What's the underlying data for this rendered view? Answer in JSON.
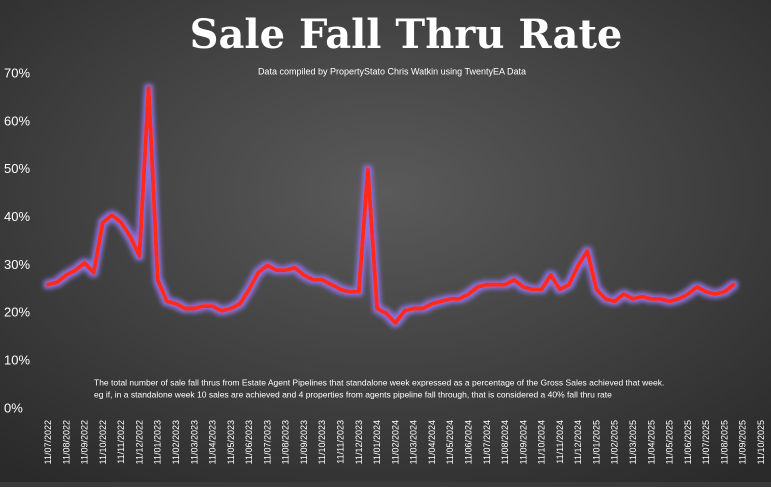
{
  "chart_data": {
    "type": "line",
    "title": "Sale Fall Thru Rate",
    "subtitle": "Data compiled by PropertyStato Chris Watkin using TwentyEA Data",
    "notes": [
      "The total number of sale fall thrus from Estate Agent Pipelines that standalone week expressed as a percentage of the Gross Sales achieved that week.",
      "eg if, in a standalone week 10 sales are achieved and 4 properties from agents pipeline fall through, that is considered a 40%  fall thru rate"
    ],
    "categories": [
      "11/07/2022",
      null,
      "11/08/2022",
      null,
      "11/09/2022",
      null,
      "11/10/2022",
      null,
      "11/11/2022",
      null,
      "11/12/2022",
      null,
      "11/01/2023",
      null,
      "11/02/2023",
      null,
      "11/03/2023",
      null,
      "11/04/2023",
      null,
      "11/05/2023",
      null,
      "11/06/2023",
      null,
      "11/07/2023",
      null,
      "11/08/2023",
      null,
      "11/09/2023",
      null,
      "11/10/2023",
      null,
      "11/11/2023",
      null,
      "11/12/2023",
      null,
      "11/01/2024",
      null,
      "11/02/2024",
      null,
      "11/03/2024",
      null,
      "11/04/2024",
      null,
      "11/05/2024",
      null,
      "11/06/2024",
      null,
      "11/07/2024",
      null,
      "11/08/2024",
      null,
      "11/09/2024",
      null,
      "11/10/2024",
      null,
      "11/11/2024",
      null,
      "11/12/2024",
      null,
      "11/01/2025",
      null,
      "11/02/2025",
      null,
      "11/03/2025",
      null,
      "11/04/2025",
      null,
      "11/05/2025",
      null,
      "11/06/2025",
      null,
      "11/07/2025",
      null,
      "11/08/2025",
      null,
      "11/09/2025",
      null,
      "11/10/2025"
    ],
    "series": [
      {
        "name": "Sale Fall Thru Rate",
        "color": "#ff2a1a",
        "values": [
          26,
          26.5,
          28,
          29,
          30.5,
          28.5,
          39,
          40.5,
          39,
          36,
          32,
          67,
          27,
          22.5,
          22,
          21,
          21,
          21.5,
          21.5,
          20.5,
          21,
          22,
          25,
          28.5,
          30,
          29,
          29,
          29.5,
          28,
          27,
          27,
          26,
          25,
          24.5,
          24.5,
          50,
          21,
          20,
          18,
          20.5,
          21,
          21,
          22,
          22.5,
          23,
          23,
          24,
          25.5,
          26,
          26,
          26,
          27,
          25.5,
          25,
          25,
          28,
          25,
          26,
          30,
          33,
          25,
          23,
          22.5,
          24,
          23,
          23.5,
          23,
          23,
          22.5,
          23,
          24,
          25.5,
          24.5,
          24,
          24.5,
          26,
          null,
          null,
          null
        ]
      }
    ],
    "ylim": [
      0,
      70
    ],
    "yticks": [
      {
        "value": 0,
        "label": "0%"
      },
      {
        "value": 10,
        "label": "10%"
      },
      {
        "value": 20,
        "label": "20%"
      },
      {
        "value": 30,
        "label": "30%"
      },
      {
        "value": 40,
        "label": "40%"
      },
      {
        "value": 50,
        "label": "50%"
      },
      {
        "value": 60,
        "label": "60%"
      },
      {
        "value": 70,
        "label": "70%"
      }
    ]
  }
}
